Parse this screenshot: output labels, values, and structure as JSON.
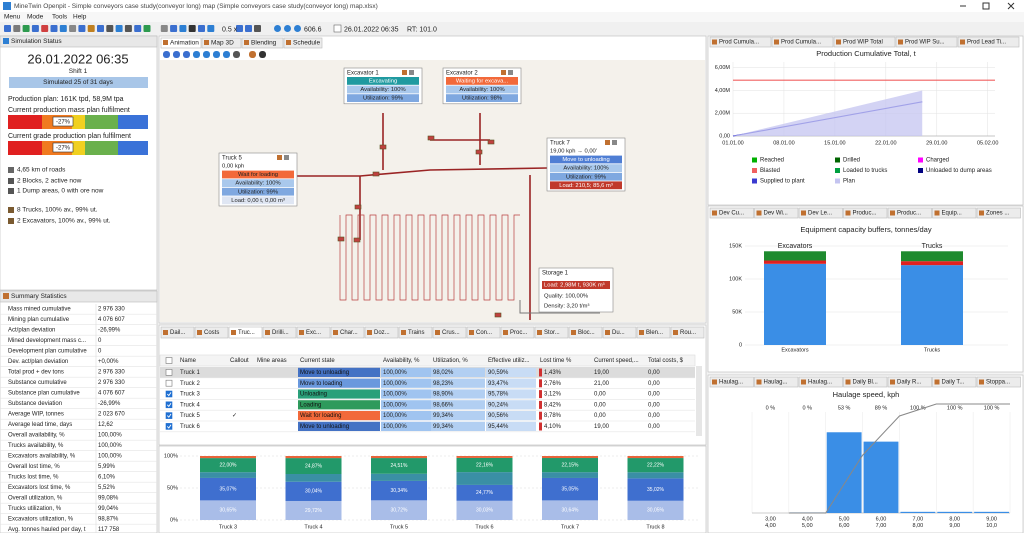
{
  "title_bar": "MineTwin Openpit - Simple conveyors case study(conveyor long) map (Simple conveyors case study(conveyor long) map.xlsx)",
  "menu": [
    "Menu",
    "Mode",
    "Tools",
    "Help"
  ],
  "toolbar": {
    "speed": "0.5 x",
    "time": 606.6,
    "date": "26.01.2022 06:35",
    "rt": "RT: 101.0"
  },
  "simulation_status": {
    "title": "Simulation Status",
    "date": "26.01.2022 06:35",
    "shift": "Shift 1",
    "progress": "Simulated 25 of 31 days",
    "plan": "Production plan: 161K tpd, 58,9M tpa",
    "mass_label": "Current production mass plan fulfilment",
    "mass_value": "-27%",
    "grade_label": "Current grade production plan fulfilment",
    "grade_value": "-27%",
    "items": [
      "4,65 km of roads",
      "2 Blocks, 2 active now",
      "1 Dump areas, 0 with ore now",
      "8 Trucks, 100% av., 99% ut.",
      "2 Excavators, 100% av., 99% ut."
    ]
  },
  "summary_statistics": {
    "title": "Summary Statistics",
    "rows": [
      [
        "Mass mined cumulative",
        "2 976 330"
      ],
      [
        "Mining plan cumulative",
        "4 076 607"
      ],
      [
        "Act/plan deviation",
        "-26,99%"
      ],
      [
        "Mined development mass c...",
        "0"
      ],
      [
        "Development plan cumulative",
        "0"
      ],
      [
        "Dev. act/plan deviation",
        "+0,00%"
      ],
      [
        "Total prod + dev tons",
        "2 976 330"
      ],
      [
        "Substance cumulative",
        "2 976 330"
      ],
      [
        "Substance plan cumulative",
        "4 076 607"
      ],
      [
        "Substance deviation",
        "-26,99%"
      ],
      [
        "Average WIP, tonnes",
        "2 023 670"
      ],
      [
        "Average lead time, days",
        "12,62"
      ],
      [
        "Overall availability, %",
        "100,00%"
      ],
      [
        "Trucks availability, %",
        "100,00%"
      ],
      [
        "Excavators availability, %",
        "100,00%"
      ],
      [
        "Overall lost time, %",
        "5,99%"
      ],
      [
        "Trucks lost time, %",
        "6,10%"
      ],
      [
        "Excavators lost time, %",
        "5,52%"
      ],
      [
        "Overall utilization, %",
        "99,08%"
      ],
      [
        "Trucks utilization, %",
        "99,04%"
      ],
      [
        "Excavators utilization, %",
        "98,87%"
      ],
      [
        "Avg. tonnes hauled per day, t",
        "117 758"
      ]
    ]
  },
  "map_tabs": [
    "Animation",
    "Map 3D",
    "Blending",
    "Schedule"
  ],
  "map": {
    "excavators": [
      {
        "name": "Excavator 1",
        "state": "Excavating",
        "state_color": "#1f9aa0",
        "availability": "Availability: 100%",
        "utilization": "Utilization: 99%"
      },
      {
        "name": "Excavator 2",
        "state": "Waiting for excava...",
        "state_color": "#f2693a",
        "availability": "Availability: 100%",
        "utilization": "Utilization: 98%"
      }
    ],
    "trucks": [
      {
        "name": "Truck 5",
        "speed": "0,00 kph",
        "state": "Wait for loading",
        "state_color": "#f2693a",
        "availability": "Availability: 100%",
        "utilization": "Utilization: 99%",
        "load": "Load: 0,00 t, 0,00 m³",
        "load_color": "#dfe6f3"
      },
      {
        "name": "Truck 7",
        "speed": "19,00 kph  → 0,00'",
        "state": "Move to unloading",
        "state_color": "#4f7ed4",
        "availability": "Availability: 100%",
        "utilization": "Utilization: 99%",
        "load": "Load: 210,5; 85,6 m³",
        "load_color": "#c0392b"
      }
    ],
    "storage": {
      "name": "Storage 1",
      "load": "Load: 2,98M t, 930K m³",
      "quality": "Quality: 100,00%",
      "density": "Density: 3,20 t/m³"
    }
  },
  "bottom_tabs": [
    "Dail...",
    "Costs",
    "Truc...",
    "Drilli...",
    "Exc...",
    "Char...",
    "Doz...",
    "Trains",
    "Crus...",
    "Con...",
    "Proc...",
    "Stor...",
    "Bloc...",
    "Du...",
    "Blen...",
    "Rou..."
  ],
  "truck_table": {
    "columns": [
      "Name",
      "Callout",
      "Mine areas",
      "Current state",
      "Availability, %",
      "Utilization, %",
      "Effective utiliz...",
      "Lost time %",
      "Current speed,...",
      "Total costs, $"
    ],
    "rows": [
      {
        "name": "Truck 1",
        "checked": false,
        "state": "Move to unloading",
        "state_color": "#4472c4",
        "cells": [
          "100,00%",
          "98,02%",
          "90,59%",
          "1,43%",
          "19,00",
          "0,00"
        ]
      },
      {
        "name": "Truck 2",
        "checked": false,
        "state": "Move to loading",
        "state_color": "#6a98dd",
        "cells": [
          "100,00%",
          "98,23%",
          "93,47%",
          "2,76%",
          "21,00",
          "0,00"
        ]
      },
      {
        "name": "Truck 3",
        "checked": true,
        "state": "Unloading",
        "state_color": "#2aa07a",
        "cells": [
          "100,00%",
          "98,90%",
          "95,78%",
          "3,12%",
          "0,00",
          "0,00"
        ]
      },
      {
        "name": "Truck 4",
        "checked": true,
        "state": "Loading",
        "state_color": "#2e9a5c",
        "cells": [
          "100,00%",
          "98,66%",
          "90,24%",
          "8,42%",
          "0,00",
          "0,00"
        ]
      },
      {
        "name": "Truck 5",
        "checked": true,
        "callout": "✓",
        "state": "Wait for loading",
        "state_color": "#f2693a",
        "cells": [
          "100,00%",
          "99,34%",
          "90,56%",
          "8,78%",
          "0,00",
          "0,00"
        ]
      },
      {
        "name": "Truck 6",
        "checked": true,
        "state": "Move to unloading",
        "state_color": "#4472c4",
        "cells": [
          "100,00%",
          "99,34%",
          "95,44%",
          "4,10%",
          "19,00",
          "0,00"
        ]
      }
    ]
  },
  "truck_chart": {
    "type": "bar",
    "categories": [
      "Truck 3",
      "Truck 4",
      "Truck 5",
      "Truck 6",
      "Truck 7",
      "Truck 8"
    ],
    "ylim": [
      0,
      100
    ],
    "yticks": [
      {
        "value": 0,
        "label": "0%"
      },
      {
        "value": 50,
        "label": "50%"
      },
      {
        "value": 100,
        "label": "100%"
      }
    ],
    "series": [
      {
        "color": "#a9bde8",
        "values": [
          30.65,
          29.72,
          30.72,
          30.03,
          30.64,
          30.05
        ],
        "value_labels": [
          "30,65%",
          "29,72%",
          "30,72%",
          "30,03%",
          "30,64%",
          "30,05%"
        ]
      },
      {
        "color": "#3f6fcf",
        "values": [
          35.07,
          30.04,
          30.34,
          24.77,
          35.05,
          35.02
        ],
        "value_labels": [
          "35,07%",
          "30,04%",
          "30,34%",
          "24,77%",
          "35,05%",
          "35,02%"
        ]
      },
      {
        "color": "#3a8fa5",
        "values": [
          9.0,
          12.1,
          11.2,
          20.0,
          9.0,
          9.5
        ]
      },
      {
        "color": "#22996a",
        "values": [
          22.0,
          24.87,
          24.51,
          22.16,
          22.15,
          22.22
        ],
        "value_labels": [
          "22,00%",
          "24,87%",
          "24,51%",
          "22,16%",
          "22,15%",
          "22,22%"
        ]
      },
      {
        "color": "#e8643a",
        "values": [
          3.28,
          3.27,
          3.23,
          3.04,
          3.16,
          3.21
        ]
      }
    ]
  },
  "right_tabs_1": [
    "Prod Cumula...",
    "Prod Cumula...",
    "Prod WIP Total",
    "Prod WIP Su...",
    "Prod Lead Ti..."
  ],
  "production_chart": {
    "type": "line",
    "title": "Production Cumulative Total, t",
    "xlim": [
      0,
      36
    ],
    "xticks": [
      {
        "value": 0,
        "label": "01.01.00"
      },
      {
        "value": 7,
        "label": "08.01.00"
      },
      {
        "value": 14,
        "label": "15.01.00"
      },
      {
        "value": 21,
        "label": "22.01.00"
      },
      {
        "value": 28,
        "label": "29.01.00"
      },
      {
        "value": 35,
        "label": "05.02.00"
      }
    ],
    "ylim": [
      0,
      6500000
    ],
    "yticks": [
      {
        "value": 0,
        "label": "0,00"
      },
      {
        "value": 2000000,
        "label": "2,00M"
      },
      {
        "value": 4000000,
        "label": "4,00M"
      },
      {
        "value": 6000000,
        "label": "6,00M"
      }
    ],
    "grid": true,
    "series": [
      {
        "name": "Reached",
        "color": "#00b000",
        "x": [],
        "values": []
      },
      {
        "name": "Drilled",
        "color": "#006400",
        "x": [],
        "values": []
      },
      {
        "name": "Charged",
        "color": "#ff00ff",
        "x": [],
        "values": []
      },
      {
        "name": "Blasted",
        "color": "#f06060",
        "x": [
          0,
          36
        ],
        "values": [
          4900000,
          4900000
        ]
      },
      {
        "name": "Loaded to trucks",
        "color": "#00a040",
        "x": [],
        "values": []
      },
      {
        "name": "Unloaded to dump areas",
        "color": "#000080",
        "x": [],
        "values": []
      },
      {
        "name": "Supplied to plant",
        "color": "#3a3ad0",
        "x": [
          0,
          26
        ],
        "values": [
          0,
          3000000
        ]
      },
      {
        "name": "Plan",
        "color": "#c4c4f0",
        "style": "area",
        "x": [
          0,
          26
        ],
        "values": [
          0,
          4000000
        ]
      }
    ]
  },
  "right_tabs_2": [
    "Dev Cu...",
    "Dev Wi...",
    "Dev Le...",
    "Produc...",
    "Produc...",
    "Equip...",
    "Zones ..."
  ],
  "equipment_chart": {
    "type": "bar",
    "title": "Equipment capacity buffers, tonnes/day",
    "categories": [
      "Excavators",
      "Trucks"
    ],
    "ylim": [
      0,
      160000
    ],
    "yticks": [
      0,
      {
        "value": 50000,
        "label": "50K"
      },
      {
        "value": 100000,
        "label": "100K"
      },
      {
        "value": 150000,
        "label": "150K"
      }
    ],
    "grid": true,
    "series": [
      {
        "color": "#3a8ee6",
        "values": [
          123000,
          121000
        ]
      },
      {
        "color": "#e02020",
        "values": [
          5000,
          6000
        ]
      },
      {
        "color": "#1e8a2e",
        "values": [
          14000,
          15000
        ]
      }
    ]
  },
  "right_tabs_3": [
    "Haulag...",
    "Haulag...",
    "Haulag...",
    "Daily Bl...",
    "Daily R...",
    "Daily T...",
    "Stoppa..."
  ],
  "haulage_chart": {
    "type": "histogram",
    "title": "Haulage speed, kph",
    "bins": [
      3,
      4,
      5,
      6,
      7,
      8,
      9,
      10
    ],
    "xticks": [
      {
        "value": 3,
        "label": "3,00"
      },
      {
        "value": 4,
        "label": "4,00"
      },
      {
        "value": 5,
        "label": "5,00"
      },
      {
        "value": 6,
        "label": "6,00"
      },
      {
        "value": 7,
        "label": "7,00"
      },
      {
        "value": 8,
        "label": "8,00"
      },
      {
        "value": 9,
        "label": "9,00"
      },
      {
        "value": 10,
        "label": "10,0"
      }
    ],
    "values": [
      0,
      0.5,
      69,
      61,
      1,
      1,
      1
    ],
    "ylim": [
      0,
      100
    ],
    "color": "#3a8ee6",
    "cumulative": [
      0,
      0,
      53,
      89,
      100,
      100,
      100
    ],
    "cumulative_labels": [
      "0 %",
      "0 %",
      "53 %",
      "89 %",
      "100 %",
      "100 %",
      "100 %"
    ]
  }
}
